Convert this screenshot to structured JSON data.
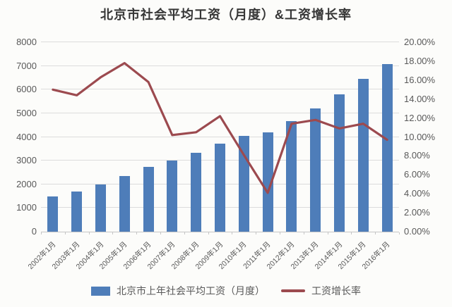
{
  "title": "北京市社会平均工资（月度）&工资增长率",
  "colors": {
    "bar": "#4E7DB9",
    "line": "#9C4A4F",
    "grid": "#DCDCDC",
    "axis_line": "#C6C6C6",
    "text": "#595959",
    "title_text": "#363636",
    "background": "#FCFCFA"
  },
  "chart_data": {
    "type": "bar+line",
    "title": "北京市社会平均工资（月度）&工资增长率",
    "categories": [
      "2002年1月",
      "2003年1月",
      "2004年1月",
      "2005年1月",
      "2006年1月",
      "2007年1月",
      "2008年1月",
      "2009年1月",
      "2010年1月",
      "2011年1月",
      "2012年1月",
      "2013年1月",
      "2014年1月",
      "2015年1月",
      "2016年1月"
    ],
    "series": [
      {
        "name": "北京市上年社会平均工资（月度）",
        "type": "bar",
        "axis": "left",
        "values": [
          1490,
          1700,
          2000,
          2350,
          2730,
          3010,
          3320,
          3730,
          4040,
          4200,
          4670,
          5220,
          5790,
          6460,
          7090
        ]
      },
      {
        "name": "工资增长率",
        "type": "line",
        "axis": "right",
        "values": [
          15.0,
          14.4,
          16.3,
          17.8,
          15.8,
          10.2,
          10.5,
          12.2,
          8.1,
          4.1,
          11.4,
          11.8,
          10.9,
          11.4,
          9.7
        ]
      }
    ],
    "left_axis": {
      "min": 0,
      "max": 8000,
      "step": 1000,
      "ticks": [
        "0",
        "1000",
        "2000",
        "3000",
        "4000",
        "5000",
        "6000",
        "7000",
        "8000"
      ]
    },
    "right_axis": {
      "min": 0,
      "max": 20,
      "step": 2,
      "format": "percent",
      "ticks": [
        "0.00%",
        "2.00%",
        "4.00%",
        "6.00%",
        "8.00%",
        "10.00%",
        "12.00%",
        "14.00%",
        "16.00%",
        "18.00%",
        "20.00%"
      ]
    },
    "grid": true,
    "legend_position": "bottom"
  }
}
